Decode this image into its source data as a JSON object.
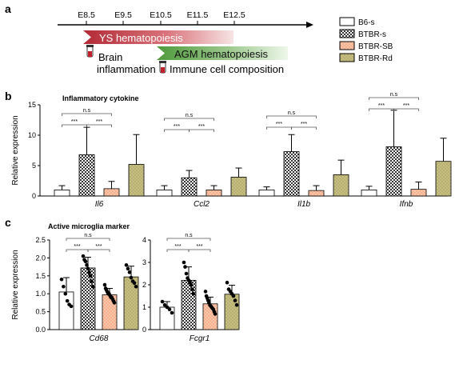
{
  "panels": {
    "a": "a",
    "b": "b",
    "c": "c"
  },
  "timeline": {
    "stages": [
      "E8.5",
      "E9.5",
      "E10.5",
      "E11.5",
      "E12.5"
    ],
    "ys_label": "YS hematopoiesis",
    "agm_label": "AGM hematopoiesis",
    "brain_label_1": "Brain",
    "brain_label_2": "inflammation",
    "immune_label": "Immune cell composition"
  },
  "legend": {
    "items": [
      {
        "name": "B6-s",
        "color": "#ffffff",
        "pattern": "none"
      },
      {
        "name": "BTBR-s",
        "color": "#444444",
        "pattern": "checker"
      },
      {
        "name": "BTBR-SB",
        "color": "#f5a882",
        "pattern": "dots"
      },
      {
        "name": "BTBR-Rd",
        "color": "#b3ad6b",
        "pattern": "dots"
      }
    ]
  },
  "significance": {
    "ns": "n.s",
    "star": "***"
  },
  "chart_data": [
    {
      "type": "bar",
      "title": "Inflammatory cytokine",
      "ylabel": "Relative expression",
      "ylim": [
        0,
        15
      ],
      "yticks": [
        0,
        5,
        10,
        15
      ],
      "categories": [
        "Il6",
        "Ccl2",
        "Il1b",
        "Ifnb"
      ],
      "series": [
        {
          "name": "B6-s",
          "values": [
            1.0,
            1.0,
            1.0,
            1.0
          ],
          "errors": [
            0.7,
            0.7,
            0.5,
            0.6
          ]
        },
        {
          "name": "BTBR-s",
          "values": [
            6.8,
            3.0,
            7.3,
            8.1
          ],
          "errors": [
            4.5,
            1.2,
            2.8,
            6.0
          ]
        },
        {
          "name": "BTBR-SB",
          "values": [
            1.2,
            1.0,
            0.9,
            1.1
          ],
          "errors": [
            1.2,
            0.7,
            0.8,
            1.2
          ]
        },
        {
          "name": "BTBR-Rd",
          "values": [
            5.2,
            3.1,
            3.5,
            5.7
          ],
          "errors": [
            4.9,
            1.5,
            2.4,
            3.8
          ]
        }
      ]
    },
    {
      "type": "bar",
      "title": "Active microglia marker",
      "ylabel": "Relative expression",
      "ylim": [
        0,
        2.5
      ],
      "yticks": [
        0.0,
        0.5,
        1.0,
        1.5,
        2.0,
        2.5
      ],
      "categories": [
        "Cd68"
      ],
      "series": [
        {
          "name": "B6-s",
          "values": [
            1.05
          ],
          "errors": [
            0.4
          ],
          "points": [
            1.4,
            1.2,
            1.0,
            0.8,
            0.7,
            0.65
          ]
        },
        {
          "name": "BTBR-s",
          "values": [
            1.72
          ],
          "errors": [
            0.3
          ],
          "points": [
            2.05,
            1.95,
            1.9,
            1.8,
            1.7,
            1.6,
            1.5,
            1.35,
            1.2
          ]
        },
        {
          "name": "BTBR-SB",
          "values": [
            0.97
          ],
          "errors": [
            0.18
          ],
          "points": [
            1.25,
            1.15,
            1.1,
            1.05,
            1.0,
            1.0,
            0.95,
            0.9,
            0.9,
            0.85,
            0.8,
            0.75
          ]
        },
        {
          "name": "BTBR-Rd",
          "values": [
            1.47
          ],
          "errors": [
            0.3
          ],
          "points": [
            1.8,
            1.7,
            1.6,
            1.45,
            1.35,
            1.3,
            1.2
          ]
        }
      ]
    },
    {
      "type": "bar",
      "title": "",
      "ylabel": "",
      "ylim": [
        0,
        4
      ],
      "yticks": [
        0,
        1,
        2,
        3,
        4
      ],
      "categories": [
        "Fcgr1"
      ],
      "series": [
        {
          "name": "B6-s",
          "values": [
            1.0
          ],
          "errors": [
            0.25
          ],
          "points": [
            1.25,
            1.1,
            1.0,
            0.9,
            0.75
          ]
        },
        {
          "name": "BTBR-s",
          "values": [
            2.2
          ],
          "errors": [
            0.6
          ],
          "points": [
            3.0,
            2.8,
            2.5,
            2.3,
            2.2,
            2.1,
            2.0,
            1.8,
            1.6
          ]
        },
        {
          "name": "BTBR-SB",
          "values": [
            1.15
          ],
          "errors": [
            0.3
          ],
          "points": [
            1.7,
            1.5,
            1.4,
            1.3,
            1.2,
            1.1,
            1.05,
            1.0,
            0.95,
            0.9,
            0.8,
            0.7
          ]
        },
        {
          "name": "BTBR-Rd",
          "values": [
            1.58
          ],
          "errors": [
            0.4
          ],
          "points": [
            2.1,
            1.8,
            1.7,
            1.6,
            1.5,
            1.3,
            1.1
          ]
        }
      ]
    }
  ]
}
